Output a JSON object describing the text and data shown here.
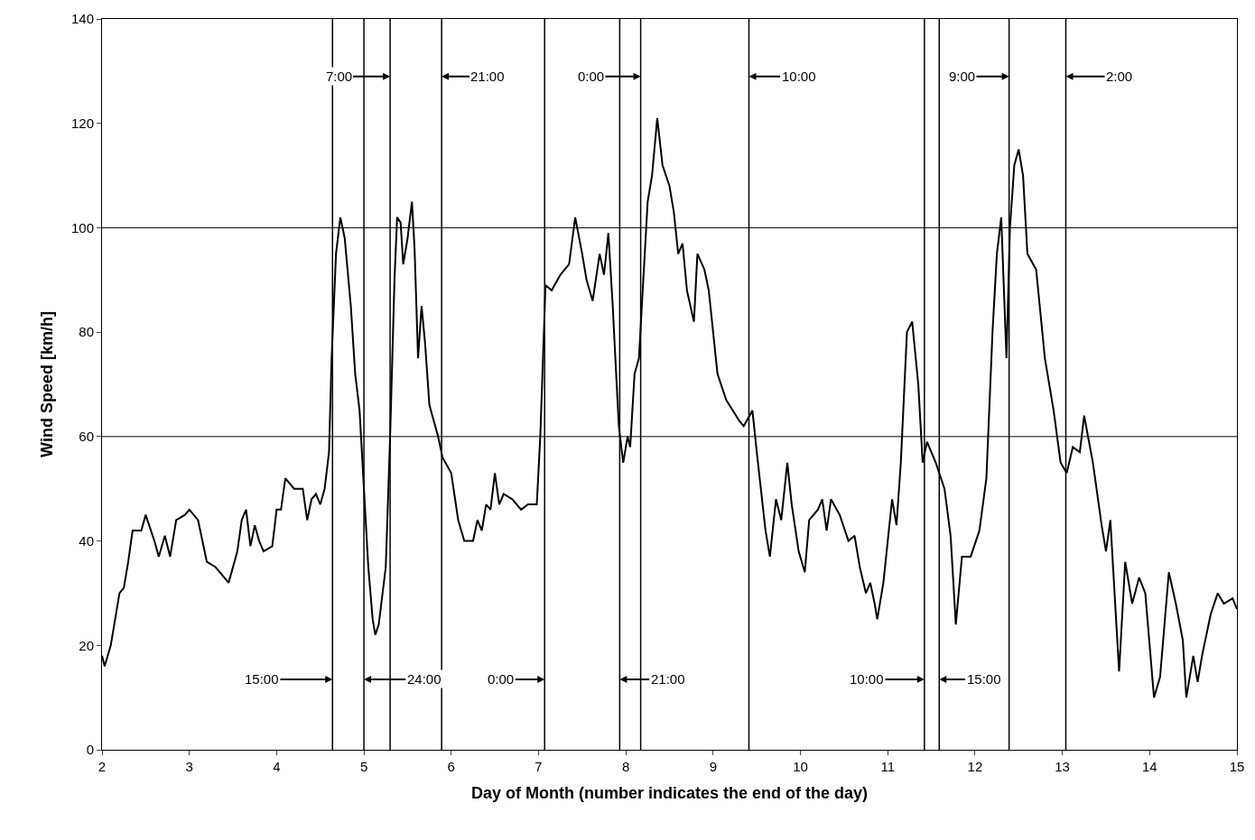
{
  "chart_data": {
    "type": "line",
    "xlabel": "Day of Month (number indicates the end of the day)",
    "ylabel": "Wind Speed [km/h]",
    "x": [
      2.0,
      2.03,
      2.1,
      2.2,
      2.25,
      2.3,
      2.35,
      2.45,
      2.5,
      2.6,
      2.65,
      2.72,
      2.78,
      2.85,
      2.95,
      3.0,
      3.1,
      3.15,
      3.2,
      3.3,
      3.4,
      3.45,
      3.55,
      3.6,
      3.65,
      3.7,
      3.75,
      3.8,
      3.85,
      3.95,
      4.0,
      4.05,
      4.1,
      4.2,
      4.3,
      4.35,
      4.4,
      4.45,
      4.5,
      4.55,
      4.6,
      4.63,
      4.68,
      4.73,
      4.78,
      4.85,
      4.9,
      4.95,
      5.0,
      5.05,
      5.1,
      5.13,
      5.17,
      5.25,
      5.3,
      5.35,
      5.38,
      5.42,
      5.45,
      5.5,
      5.55,
      5.58,
      5.62,
      5.66,
      5.7,
      5.75,
      5.85,
      5.9,
      6.0,
      6.08,
      6.15,
      6.25,
      6.3,
      6.35,
      6.4,
      6.45,
      6.5,
      6.55,
      6.6,
      6.7,
      6.8,
      6.88,
      6.98,
      7.02,
      7.08,
      7.15,
      7.25,
      7.35,
      7.42,
      7.5,
      7.55,
      7.62,
      7.7,
      7.75,
      7.8,
      7.85,
      7.88,
      7.92,
      7.97,
      8.02,
      8.05,
      8.1,
      8.15,
      8.2,
      8.25,
      8.3,
      8.36,
      8.42,
      8.5,
      8.55,
      8.6,
      8.65,
      8.7,
      8.78,
      8.82,
      8.9,
      8.95,
      9.05,
      9.15,
      9.3,
      9.35,
      9.45,
      9.5,
      9.6,
      9.65,
      9.72,
      9.78,
      9.85,
      9.9,
      9.98,
      10.05,
      10.1,
      10.2,
      10.25,
      10.3,
      10.35,
      10.45,
      10.55,
      10.62,
      10.68,
      10.75,
      10.8,
      10.85,
      10.88,
      10.95,
      11.05,
      11.1,
      11.15,
      11.22,
      11.28,
      11.35,
      11.4,
      11.45,
      11.55,
      11.65,
      11.72,
      11.78,
      11.85,
      11.95,
      12.05,
      12.13,
      12.2,
      12.25,
      12.3,
      12.36,
      12.4,
      12.45,
      12.5,
      12.55,
      12.6,
      12.7,
      12.8,
      12.9,
      12.98,
      13.05,
      13.12,
      13.2,
      13.25,
      13.35,
      13.45,
      13.5,
      13.55,
      13.65,
      13.72,
      13.8,
      13.88,
      13.95,
      14.05,
      14.12,
      14.22,
      14.3,
      14.38,
      14.42,
      14.5,
      14.55,
      14.6,
      14.7,
      14.78,
      14.85,
      14.95,
      15.0
    ],
    "series": [
      {
        "color": "#000000",
        "values": [
          18,
          16,
          20,
          30,
          31,
          36,
          42,
          42,
          45,
          40,
          37,
          41,
          37,
          44,
          45,
          46,
          44,
          40,
          36,
          35,
          33,
          32,
          38,
          44,
          46,
          39,
          43,
          40,
          38,
          39,
          46,
          46,
          52,
          50,
          50,
          44,
          48,
          49,
          47,
          50,
          57,
          75,
          95,
          102,
          98,
          85,
          72,
          65,
          50,
          35,
          25,
          22,
          24,
          35,
          60,
          90,
          102,
          101,
          93,
          98,
          105,
          96,
          75,
          85,
          78,
          66,
          60,
          56,
          53,
          44,
          40,
          40,
          44,
          42,
          47,
          46,
          53,
          47,
          49,
          48,
          46,
          47,
          47,
          60,
          89,
          88,
          91,
          93,
          102,
          95,
          90,
          86,
          95,
          91,
          99,
          85,
          75,
          62,
          55,
          60,
          58,
          72,
          75,
          90,
          105,
          110,
          121,
          112,
          108,
          103,
          95,
          97,
          88,
          82,
          95,
          92,
          88,
          72,
          67,
          63,
          62,
          65,
          57,
          42,
          37,
          48,
          44,
          55,
          47,
          38,
          34,
          44,
          46,
          48,
          42,
          48,
          45,
          40,
          41,
          35,
          30,
          32,
          28,
          25,
          32,
          48,
          43,
          55,
          80,
          82,
          70,
          55,
          59,
          55,
          50,
          41,
          24,
          37,
          37,
          42,
          52,
          80,
          95,
          102,
          75,
          100,
          112,
          115,
          110,
          95,
          92,
          75,
          65,
          55,
          53,
          58,
          57,
          64,
          55,
          43,
          38,
          44,
          15,
          36,
          28,
          33,
          30,
          10,
          14,
          34,
          28,
          21,
          10,
          18,
          13,
          18,
          26,
          30,
          28,
          29,
          27
        ]
      }
    ],
    "xlim": [
      2,
      15
    ],
    "ylim": [
      0,
      140
    ],
    "xticks": [
      2,
      3,
      4,
      5,
      6,
      7,
      8,
      9,
      10,
      11,
      12,
      13,
      14,
      15
    ],
    "yticks": [
      0,
      20,
      40,
      60,
      80,
      100,
      120,
      140
    ],
    "grid": false,
    "marker": "none",
    "line_style": "solid",
    "ref_lines": [
      {
        "axis": "x",
        "value": 5.3
      },
      {
        "axis": "x",
        "value": 5.89
      },
      {
        "axis": "x",
        "value": 8.17
      },
      {
        "axis": "x",
        "value": 9.41
      },
      {
        "axis": "x",
        "value": 12.39
      },
      {
        "axis": "x",
        "value": 13.04
      },
      {
        "axis": "x",
        "value": 4.64
      },
      {
        "axis": "x",
        "value": 5.0
      },
      {
        "axis": "x",
        "value": 7.07
      },
      {
        "axis": "x",
        "value": 7.93
      },
      {
        "axis": "x",
        "value": 11.42
      },
      {
        "axis": "x",
        "value": 11.59
      },
      {
        "axis": "y",
        "value": 60
      },
      {
        "axis": "y",
        "value": 100
      }
    ],
    "annotations": [
      {
        "text": "7:00",
        "x": 4.71,
        "y": 129
      },
      {
        "text": "21:00",
        "x": 6.42,
        "y": 129
      },
      {
        "text": "0:00",
        "x": 7.6,
        "y": 129
      },
      {
        "text": "10:00",
        "x": 9.98,
        "y": 129
      },
      {
        "text": "9:00",
        "x": 11.85,
        "y": 129
      },
      {
        "text": "2:00",
        "x": 13.65,
        "y": 129
      },
      {
        "text": "15:00",
        "x": 3.83,
        "y": 13.5
      },
      {
        "text": "24:00",
        "x": 5.69,
        "y": 13.5
      },
      {
        "text": "0:00",
        "x": 6.57,
        "y": 13.5
      },
      {
        "text": "21:00",
        "x": 8.48,
        "y": 13.5
      },
      {
        "text": "10:00",
        "x": 10.76,
        "y": 13.5
      },
      {
        "text": "15:00",
        "x": 12.1,
        "y": 13.5
      }
    ]
  }
}
